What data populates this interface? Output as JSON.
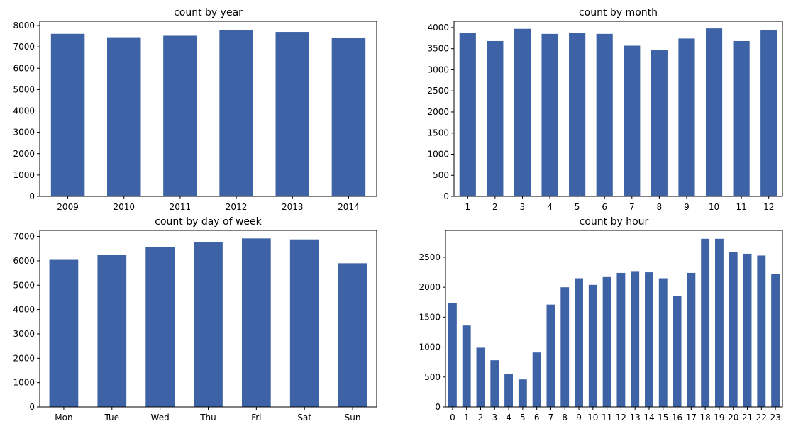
{
  "chart_data": [
    {
      "type": "bar",
      "title": "count by year",
      "categories": [
        "2009",
        "2010",
        "2011",
        "2012",
        "2013",
        "2014"
      ],
      "values": [
        7610,
        7450,
        7520,
        7770,
        7700,
        7410
      ],
      "ylim": [
        0,
        8200
      ],
      "yticks": [
        0,
        1000,
        2000,
        3000,
        4000,
        5000,
        6000,
        7000,
        8000
      ],
      "color": "#3d62a5",
      "grid": false
    },
    {
      "type": "bar",
      "title": "count by month",
      "categories": [
        "1",
        "2",
        "3",
        "4",
        "5",
        "6",
        "7",
        "8",
        "9",
        "10",
        "11",
        "12"
      ],
      "values": [
        3870,
        3680,
        3970,
        3850,
        3870,
        3850,
        3570,
        3470,
        3740,
        3980,
        3680,
        3940
      ],
      "ylim": [
        0,
        4150
      ],
      "yticks": [
        0,
        500,
        1000,
        1500,
        2000,
        2500,
        3000,
        3500,
        4000
      ],
      "color": "#3d62a5",
      "grid": false
    },
    {
      "type": "bar",
      "title": "count by day of week",
      "categories": [
        "Mon",
        "Tue",
        "Wed",
        "Thu",
        "Fri",
        "Sat",
        "Sun"
      ],
      "values": [
        6040,
        6260,
        6560,
        6780,
        6920,
        6880,
        5900
      ],
      "ylim": [
        0,
        7250
      ],
      "yticks": [
        0,
        1000,
        2000,
        3000,
        4000,
        5000,
        6000,
        7000
      ],
      "color": "#3d62a5",
      "grid": false
    },
    {
      "type": "bar",
      "title": "count by hour",
      "categories": [
        "0",
        "1",
        "2",
        "3",
        "4",
        "5",
        "6",
        "7",
        "8",
        "9",
        "10",
        "11",
        "12",
        "13",
        "14",
        "15",
        "16",
        "17",
        "18",
        "19",
        "20",
        "21",
        "22",
        "23"
      ],
      "values": [
        1730,
        1360,
        990,
        780,
        550,
        460,
        910,
        1710,
        2000,
        2150,
        2040,
        2170,
        2240,
        2270,
        2250,
        2150,
        1850,
        2240,
        2810,
        2810,
        2590,
        2560,
        2530,
        2220
      ],
      "ylim": [
        0,
        2950
      ],
      "yticks": [
        0,
        500,
        1000,
        1500,
        2000,
        2500
      ],
      "color": "#3d62a5",
      "grid": false
    }
  ]
}
